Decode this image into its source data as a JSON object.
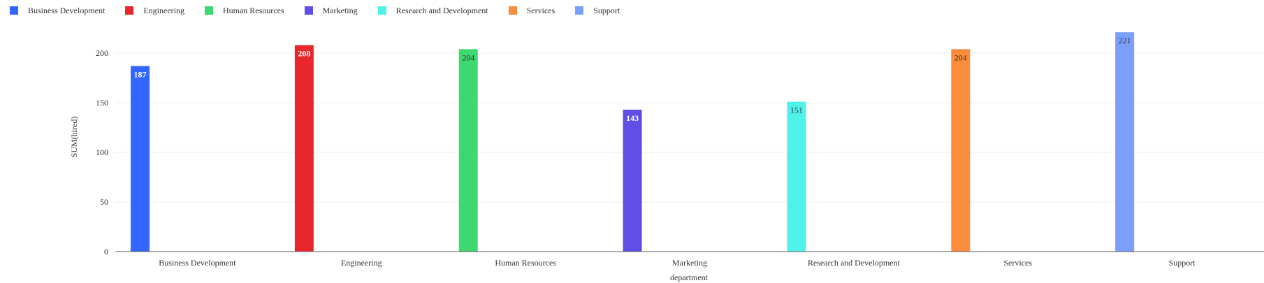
{
  "chart_data": {
    "type": "bar",
    "categories": [
      "Business Development",
      "Engineering",
      "Human Resources",
      "Marketing",
      "Research and Development",
      "Services",
      "Support"
    ],
    "series": [
      {
        "name": "Business Development",
        "values": [
          187,
          null,
          null,
          null,
          null,
          null,
          null
        ],
        "color": "#3366ff"
      },
      {
        "name": "Engineering",
        "values": [
          null,
          208,
          null,
          null,
          null,
          null,
          null
        ],
        "color": "#e8272c"
      },
      {
        "name": "Human Resources",
        "values": [
          null,
          null,
          204,
          null,
          null,
          null,
          null
        ],
        "color": "#3dd870"
      },
      {
        "name": "Marketing",
        "values": [
          null,
          null,
          null,
          143,
          null,
          null,
          null
        ],
        "color": "#604ee6"
      },
      {
        "name": "Research and Development",
        "values": [
          null,
          null,
          null,
          null,
          151,
          null,
          null
        ],
        "color": "#4ef2e9"
      },
      {
        "name": "Services",
        "values": [
          null,
          null,
          null,
          null,
          null,
          204,
          null
        ],
        "color": "#fb8c3b"
      },
      {
        "name": "Support",
        "values": [
          null,
          null,
          null,
          null,
          null,
          null,
          221
        ],
        "color": "#7b9ffc"
      }
    ],
    "values": [
      187,
      208,
      204,
      143,
      151,
      204,
      221
    ],
    "data_labels": [
      "187",
      "208",
      "204",
      "143",
      "151",
      "204",
      "221"
    ],
    "label_colors": [
      "#ffffff",
      "#ffffff",
      "#333333",
      "#ffffff",
      "#333333",
      "#333333",
      "#333333"
    ],
    "xlabel": "department",
    "ylabel": "SUM(hired)",
    "ylim": [
      0,
      200
    ],
    "yticks": [
      "0",
      "50",
      "100",
      "150",
      "200"
    ],
    "ytick_values": [
      0,
      50,
      100,
      150,
      200
    ],
    "grid": true,
    "legend_position": "top-left"
  }
}
